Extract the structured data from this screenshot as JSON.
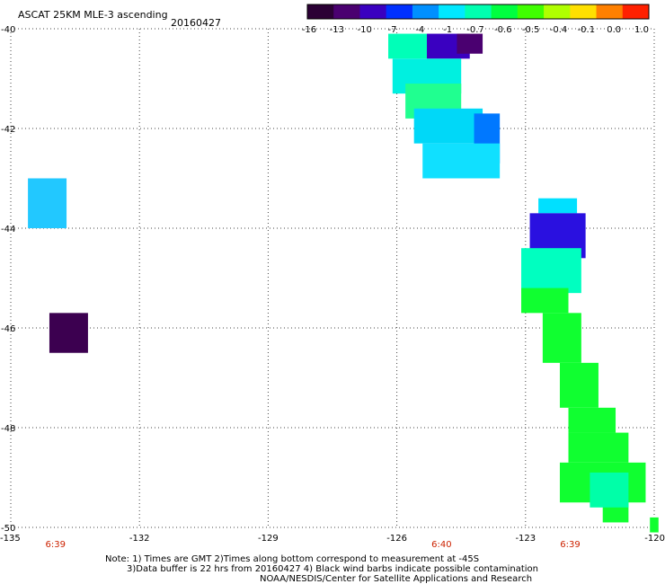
{
  "title": "ASCAT 25KM MLE-3 ascending",
  "date": "20160427",
  "colorbar": {
    "labels": [
      "-16",
      "-13",
      "-10",
      "-7",
      "-4",
      "-1",
      "-0.7",
      "-0.6",
      "-0.5",
      "-0.4",
      "-0.1",
      "0.0",
      "1.0"
    ],
    "colors": [
      "#2b0035",
      "#4a0070",
      "#3a00c0",
      "#0030ff",
      "#0090ff",
      "#00e8ff",
      "#00ffb0",
      "#00ff40",
      "#40ff00",
      "#b0ff00",
      "#ffe000",
      "#ff8000",
      "#ff2000"
    ]
  },
  "chart_data": {
    "type": "heatmap",
    "title": "ASCAT 25KM MLE-3 ascending",
    "subtitle": "20160427",
    "x_ticks": [
      "-135",
      "-132",
      "-129",
      "-126",
      "-123",
      "-120"
    ],
    "y_ticks": [
      "-40",
      "-42",
      "-44",
      "-46",
      "-48",
      "-50"
    ],
    "xlim": [
      -135,
      -120
    ],
    "ylim": [
      -50,
      -40
    ],
    "grid": true,
    "time_labels": [
      {
        "lon": -134,
        "text": "6:39"
      },
      {
        "lon": -125,
        "text": "6:40"
      },
      {
        "lon": -122,
        "text": "6:39"
      }
    ],
    "cells": [
      {
        "lon0": -134.6,
        "lon1": -133.7,
        "lat0": -43.0,
        "lat1": -44.0,
        "value": -2.5,
        "color": "#22c8ff"
      },
      {
        "lon0": -134.1,
        "lon1": -133.2,
        "lat0": -45.7,
        "lat1": -46.5,
        "value": -16,
        "color": "#3c0050"
      },
      {
        "lon0": -126.2,
        "lon1": -125.3,
        "lat0": -40.1,
        "lat1": -40.6,
        "value": -0.7,
        "color": "#00ffb8"
      },
      {
        "lon0": -125.3,
        "lon1": -124.3,
        "lat0": -40.1,
        "lat1": -40.6,
        "value": -10,
        "color": "#3a00c0"
      },
      {
        "lon0": -124.6,
        "lon1": -124.0,
        "lat0": -40.1,
        "lat1": -40.5,
        "value": -13,
        "color": "#4a0070"
      },
      {
        "lon0": -126.1,
        "lon1": -124.5,
        "lat0": -40.6,
        "lat1": -41.3,
        "value": -1,
        "color": "#00f0e0"
      },
      {
        "lon0": -125.8,
        "lon1": -124.5,
        "lat0": -41.1,
        "lat1": -41.8,
        "value": -0.6,
        "color": "#20ff90"
      },
      {
        "lon0": -125.6,
        "lon1": -124.0,
        "lat0": -41.6,
        "lat1": -42.3,
        "value": -2,
        "color": "#00d8f8"
      },
      {
        "lon0": -124.2,
        "lon1": -123.6,
        "lat0": -41.7,
        "lat1": -42.7,
        "value": -6,
        "color": "#0078ff"
      },
      {
        "lon0": -125.4,
        "lon1": -123.6,
        "lat0": -42.3,
        "lat1": -43.0,
        "value": -1,
        "color": "#10e0ff"
      },
      {
        "lon0": -122.7,
        "lon1": -121.8,
        "lat0": -43.4,
        "lat1": -43.7,
        "value": -1,
        "color": "#00e0ff"
      },
      {
        "lon0": -122.9,
        "lon1": -121.6,
        "lat0": -43.7,
        "lat1": -44.6,
        "value": -10,
        "color": "#2a10e0"
      },
      {
        "lon0": -123.1,
        "lon1": -121.7,
        "lat0": -44.4,
        "lat1": -45.3,
        "value": -0.7,
        "color": "#00ffc0"
      },
      {
        "lon0": -123.1,
        "lon1": -122.0,
        "lat0": -45.2,
        "lat1": -45.7,
        "value": -0.5,
        "color": "#10ff30"
      },
      {
        "lon0": -122.6,
        "lon1": -121.7,
        "lat0": -45.7,
        "lat1": -46.7,
        "value": -0.5,
        "color": "#10ff30"
      },
      {
        "lon0": -122.2,
        "lon1": -121.3,
        "lat0": -46.7,
        "lat1": -47.6,
        "value": -0.5,
        "color": "#10ff30"
      },
      {
        "lon0": -122.0,
        "lon1": -120.9,
        "lat0": -47.6,
        "lat1": -48.1,
        "value": -0.5,
        "color": "#10ff30"
      },
      {
        "lon0": -122.0,
        "lon1": -120.6,
        "lat0": -48.1,
        "lat1": -48.7,
        "value": -0.5,
        "color": "#10ff30"
      },
      {
        "lon0": -122.2,
        "lon1": -120.2,
        "lat0": -48.7,
        "lat1": -49.5,
        "value": -0.5,
        "color": "#10ff30"
      },
      {
        "lon0": -121.2,
        "lon1": -120.6,
        "lat0": -49.5,
        "lat1": -49.9,
        "value": -0.5,
        "color": "#10ff30"
      },
      {
        "lon0": -121.5,
        "lon1": -120.6,
        "lat0": -48.9,
        "lat1": -49.6,
        "value": -0.7,
        "color": "#00ffa8"
      },
      {
        "lon0": -120.1,
        "lon1": -119.9,
        "lat0": -49.8,
        "lat1": -50.1,
        "value": -0.5,
        "color": "#10ff30"
      }
    ]
  },
  "notes": {
    "line1": "Note: 1) Times are GMT 2)Times along bottom correspond to measurement at -45S",
    "line2": "3)Data buffer is 22 hrs from 20160427 4) Black wind barbs indicate possible contamination",
    "line3": "NOAA/NESDIS/Center for Satellite Applications and Research"
  }
}
